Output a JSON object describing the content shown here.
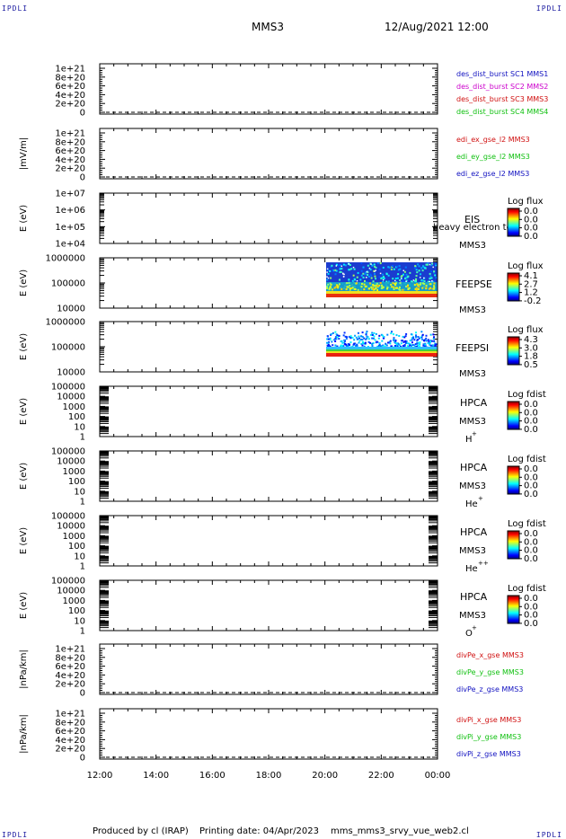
{
  "corner_logo": "IPDLI",
  "header": {
    "spacecraft": "MMS3",
    "datetime": "12/Aug/2021 12:00"
  },
  "footer": {
    "producer": "Produced by cl (IRAP)",
    "printing": "Printing date: 04/Apr/2023",
    "file": "mms_mms3_srvy_vue_web2.cl"
  },
  "colors": {
    "red": "#d01010",
    "magenta": "#cc00cc",
    "green": "#10c010",
    "blue": "#1010c0",
    "axis": "#000000"
  },
  "x_ticks": [
    "12:00",
    "14:00",
    "16:00",
    "18:00",
    "20:00",
    "22:00",
    "00:00"
  ],
  "chart_data": [
    {
      "type": "line",
      "id": "des_dist",
      "ylabel": "",
      "yticks": [
        "1e+21",
        "8e+20",
        "6e+20",
        "4e+20",
        "2e+20",
        "0"
      ],
      "ylim": [
        0,
        1e+21
      ],
      "series": [
        {
          "name": "des_dist_burst SC1 MMS1",
          "color": "blue"
        },
        {
          "name": "des_dist_burst SC2 MMS2",
          "color": "magenta"
        },
        {
          "name": "des_dist_burst SC3 MMS3",
          "color": "red"
        },
        {
          "name": "des_dist_burst SC4 MMS4",
          "color": "green"
        }
      ]
    },
    {
      "type": "line",
      "id": "edi_e",
      "ylabel": "|mV/m|",
      "yticks": [
        "1e+21",
        "8e+20",
        "6e+20",
        "4e+20",
        "2e+20",
        "0"
      ],
      "ylim": [
        0,
        1e+21
      ],
      "series": [
        {
          "name": "edi_ex_gse_l2 MMS3",
          "color": "red"
        },
        {
          "name": "edi_ey_gse_l2 MMS3",
          "color": "green"
        },
        {
          "name": "edi_ez_gse_l2 MMS3",
          "color": "blue"
        }
      ]
    },
    {
      "type": "heatmap",
      "id": "eis",
      "ylabel": "E (eV)",
      "yscale": "log",
      "yticks": [
        "1e+07",
        "1e+06",
        "1e+05",
        "1e+04"
      ],
      "labels": [
        "EIS",
        "heavy electron to",
        "MMS3"
      ],
      "colorbar": {
        "title": "Log flux",
        "ticks": [
          "0.0",
          "0.0",
          "0.0",
          "0.0"
        ]
      }
    },
    {
      "type": "heatmap",
      "id": "feepse",
      "ylabel": "E (eV)",
      "yscale": "log",
      "yticks": [
        "1000000",
        "100000",
        "10000"
      ],
      "labels": [
        "FEEPSE",
        "MMS3"
      ],
      "colorbar": {
        "title": "Log flux",
        "ticks": [
          "4.1",
          "2.7",
          "1.2",
          "-0.2"
        ]
      },
      "data_start": "20:00",
      "data_end": "00:00"
    },
    {
      "type": "heatmap",
      "id": "feepsi",
      "ylabel": "E (eV)",
      "yscale": "log",
      "yticks": [
        "1000000",
        "100000",
        "10000"
      ],
      "labels": [
        "FEEPSI",
        "MMS3"
      ],
      "colorbar": {
        "title": "Log flux",
        "ticks": [
          "4.3",
          "3.0",
          "1.8",
          "0.5"
        ]
      },
      "data_start": "20:00",
      "data_end": "00:00"
    },
    {
      "type": "heatmap",
      "id": "hpca_h",
      "ylabel": "E (eV)",
      "yscale": "log",
      "yticks": [
        "100000",
        "10000",
        "1000",
        "100",
        "10",
        "1"
      ],
      "labels": [
        "HPCA",
        "MMS3"
      ],
      "species": "H",
      "charge": "+",
      "colorbar": {
        "title": "Log fdist",
        "ticks": [
          "0.0",
          "0.0",
          "0.0",
          "0.0"
        ]
      }
    },
    {
      "type": "heatmap",
      "id": "hpca_he",
      "ylabel": "E (eV)",
      "yscale": "log",
      "yticks": [
        "100000",
        "10000",
        "1000",
        "100",
        "10",
        "1"
      ],
      "labels": [
        "HPCA",
        "MMS3"
      ],
      "species": "He",
      "charge": "+",
      "colorbar": {
        "title": "Log fdist",
        "ticks": [
          "0.0",
          "0.0",
          "0.0",
          "0.0"
        ]
      }
    },
    {
      "type": "heatmap",
      "id": "hpca_he2",
      "ylabel": "E (eV)",
      "yscale": "log",
      "yticks": [
        "100000",
        "10000",
        "1000",
        "100",
        "10",
        "1"
      ],
      "labels": [
        "HPCA",
        "MMS3"
      ],
      "species": "He",
      "charge": "++",
      "colorbar": {
        "title": "Log fdist",
        "ticks": [
          "0.0",
          "0.0",
          "0.0",
          "0.0"
        ]
      }
    },
    {
      "type": "heatmap",
      "id": "hpca_o",
      "ylabel": "E (eV)",
      "yscale": "log",
      "yticks": [
        "100000",
        "10000",
        "1000",
        "100",
        "10",
        "1"
      ],
      "labels": [
        "HPCA",
        "MMS3"
      ],
      "species": "O",
      "charge": "+",
      "colorbar": {
        "title": "Log fdist",
        "ticks": [
          "0.0",
          "0.0",
          "0.0",
          "0.0"
        ]
      }
    },
    {
      "type": "line",
      "id": "divpe",
      "ylabel": "|nPa/km|",
      "yticks": [
        "1e+21",
        "8e+20",
        "6e+20",
        "4e+20",
        "2e+20",
        "0"
      ],
      "ylim": [
        0,
        1e+21
      ],
      "series": [
        {
          "name": "divPe_x_gse MMS3",
          "color": "red"
        },
        {
          "name": "divPe_y_gse MMS3",
          "color": "green"
        },
        {
          "name": "divPe_z_gse MMS3",
          "color": "blue"
        }
      ]
    },
    {
      "type": "line",
      "id": "divpi",
      "ylabel": "|nPa/km|",
      "yticks": [
        "1e+21",
        "8e+20",
        "6e+20",
        "4e+20",
        "2e+20",
        "0"
      ],
      "ylim": [
        0,
        1e+21
      ],
      "series": [
        {
          "name": "divPi_x_gse MMS3",
          "color": "red"
        },
        {
          "name": "divPi_y_gse MMS3",
          "color": "green"
        },
        {
          "name": "divPi_z_gse MMS3",
          "color": "blue"
        }
      ]
    }
  ]
}
